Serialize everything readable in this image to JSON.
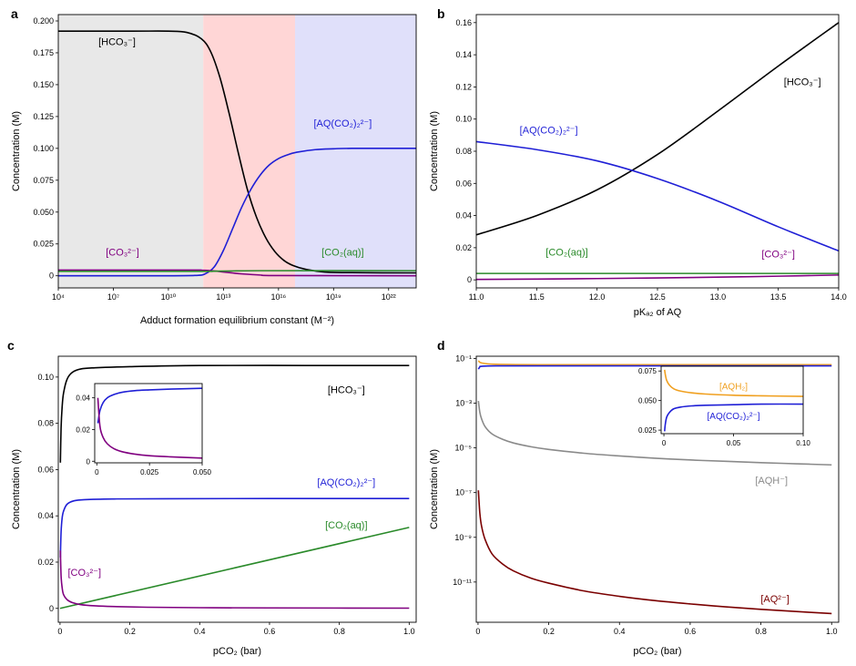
{
  "colors": {
    "black": "#000000",
    "blue": "#1f1fd6",
    "green": "#2a8a2a",
    "purple": "#800080",
    "gray": "#8a8a8a",
    "orange": "#f0a020",
    "darkred": "#7a0000",
    "shade_gray": "#e8e8e8",
    "shade_red": "#ffd6d6",
    "shade_blue": "#e0e0fa"
  },
  "panels": {
    "a": {
      "letter": "a"
    },
    "b": {
      "letter": "b"
    },
    "c": {
      "letter": "c"
    },
    "d": {
      "letter": "d"
    }
  },
  "chart_data": [
    {
      "id": "a",
      "type": "line",
      "xscale": "log",
      "xlabel": "Adduct formation equilibrium constant (M⁻²)",
      "ylabel": "Concentration (M)",
      "xlim_log10": [
        4,
        23.5
      ],
      "ylim": [
        -0.0095,
        0.205
      ],
      "xticks_log10": [
        4,
        7,
        10,
        13,
        16,
        19,
        22
      ],
      "xtick_labels": [
        "10⁴",
        "10⁷",
        "10¹⁰",
        "10¹³",
        "10¹⁶",
        "10¹⁹",
        "10²²"
      ],
      "yticks": [
        0,
        0.025,
        0.05,
        0.075,
        0.1,
        0.125,
        0.15,
        0.175,
        0.2
      ],
      "ytick_labels": [
        "0",
        "0.025",
        "0.050",
        "0.075",
        "0.100",
        "0.125",
        "0.150",
        "0.175",
        "0.200"
      ],
      "shaded_regions": [
        {
          "from_log10": 4,
          "to_log10": 11.9,
          "color": "shade_gray"
        },
        {
          "from_log10": 11.9,
          "to_log10": 16.9,
          "color": "shade_red"
        },
        {
          "from_log10": 16.9,
          "to_log10": 23.5,
          "color": "shade_blue"
        }
      ],
      "series": [
        {
          "name": "HCO3",
          "color": "black",
          "x_log10": [
            4,
            8,
            10,
            11,
            11.8,
            12.3,
            12.8,
            13.3,
            13.8,
            14.3,
            14.8,
            15.3,
            15.8,
            16.3,
            16.8,
            17.5,
            18.5,
            20,
            23.5
          ],
          "y": [
            0.192,
            0.192,
            0.192,
            0.191,
            0.186,
            0.176,
            0.156,
            0.128,
            0.097,
            0.068,
            0.046,
            0.03,
            0.019,
            0.012,
            0.008,
            0.005,
            0.003,
            0.0025,
            0.0023
          ]
        },
        {
          "name": "AQ(CO2)2",
          "color": "blue",
          "x_log10": [
            4,
            10,
            11.5,
            12,
            12.5,
            13,
            13.5,
            14,
            14.5,
            15,
            15.5,
            16,
            16.5,
            17,
            18,
            19,
            20,
            23.5
          ],
          "y": [
            0,
            0,
            0.0003,
            0.0015,
            0.007,
            0.02,
            0.037,
            0.054,
            0.068,
            0.079,
            0.087,
            0.092,
            0.095,
            0.097,
            0.099,
            0.0997,
            0.1,
            0.1
          ]
        },
        {
          "name": "CO3",
          "color": "purple",
          "x_log10": [
            4,
            11,
            11.8,
            12.5,
            13,
            13.5,
            14,
            15,
            16,
            23.5
          ],
          "y": [
            0.0045,
            0.0045,
            0.0044,
            0.0038,
            0.003,
            0.0022,
            0.0015,
            0.0006,
            0.0002,
            0.0
          ]
        },
        {
          "name": "CO2aq",
          "color": "green",
          "x_log10": [
            4,
            11.5,
            12.5,
            13.5,
            15,
            23.5
          ],
          "y": [
            0.0035,
            0.0035,
            0.0036,
            0.0038,
            0.004,
            0.004
          ]
        }
      ],
      "annotations": [
        {
          "text": "[HCO₃⁻]",
          "color": "black",
          "x_log10": 7.2,
          "y": 0.181
        },
        {
          "text": "[AQ(CO₂)₂²⁻]",
          "color": "blue",
          "x_log10": 19.5,
          "y": 0.117
        },
        {
          "text": "[CO₃²⁻]",
          "color": "purple",
          "x_log10": 7.5,
          "y": 0.016
        },
        {
          "text": "[CO₂(aq)]",
          "color": "green",
          "x_log10": 19.5,
          "y": 0.016
        }
      ]
    },
    {
      "id": "b",
      "type": "line",
      "xlabel": "pKₐ₂ of AQ",
      "ylabel": "Concentration (M)",
      "xlim": [
        11.0,
        14.0
      ],
      "ylim": [
        -0.005,
        0.165
      ],
      "xticks": [
        11.0,
        11.5,
        12.0,
        12.5,
        13.0,
        13.5,
        14.0
      ],
      "xtick_labels": [
        "11.0",
        "11.5",
        "12.0",
        "12.5",
        "13.0",
        "13.5",
        "14.0"
      ],
      "yticks": [
        0,
        0.02,
        0.04,
        0.06,
        0.08,
        0.1,
        0.12,
        0.14,
        0.16
      ],
      "ytick_labels": [
        "0",
        "0.02",
        "0.04",
        "0.06",
        "0.08",
        "0.10",
        "0.12",
        "0.14",
        "0.16"
      ],
      "series": [
        {
          "name": "HCO3",
          "color": "black",
          "x": [
            11.0,
            11.5,
            12.0,
            12.5,
            13.0,
            13.5,
            14.0
          ],
          "y": [
            0.028,
            0.04,
            0.056,
            0.078,
            0.105,
            0.133,
            0.16
          ]
        },
        {
          "name": "AQ(CO2)2",
          "color": "blue",
          "x": [
            11.0,
            11.5,
            12.0,
            12.5,
            13.0,
            13.5,
            14.0
          ],
          "y": [
            0.086,
            0.081,
            0.074,
            0.063,
            0.049,
            0.033,
            0.018
          ]
        },
        {
          "name": "CO2aq",
          "color": "green",
          "x": [
            11.0,
            14.0
          ],
          "y": [
            0.004,
            0.004
          ]
        },
        {
          "name": "CO3",
          "color": "purple",
          "x": [
            11.0,
            11.5,
            12.0,
            12.5,
            13.0,
            13.5,
            14.0
          ],
          "y": [
            0.0003,
            0.0005,
            0.0008,
            0.0012,
            0.0017,
            0.0023,
            0.003
          ]
        }
      ],
      "annotations": [
        {
          "text": "[HCO₃⁻]",
          "color": "black",
          "x": 13.7,
          "y": 0.121
        },
        {
          "text": "[AQ(CO₂)₂²⁻]",
          "color": "blue",
          "x": 11.6,
          "y": 0.091
        },
        {
          "text": "[CO₂(aq)]",
          "color": "green",
          "x": 11.75,
          "y": 0.015
        },
        {
          "text": "[CO₃²⁻]",
          "color": "purple",
          "x": 13.5,
          "y": 0.014
        }
      ]
    },
    {
      "id": "c",
      "type": "line",
      "xlabel": "pCO₂ (bar)",
      "ylabel": "Concentration (M)",
      "xlim": [
        -0.005,
        1.02
      ],
      "ylim": [
        -0.006,
        0.109
      ],
      "xticks": [
        0,
        0.2,
        0.4,
        0.6,
        0.8,
        1.0
      ],
      "xtick_labels": [
        "0",
        "0.2",
        "0.4",
        "0.6",
        "0.8",
        "1.0"
      ],
      "yticks": [
        0,
        0.02,
        0.04,
        0.06,
        0.08,
        0.1
      ],
      "ytick_labels": [
        "0",
        "0.02",
        "0.04",
        "0.06",
        "0.08",
        "0.10"
      ],
      "series": [
        {
          "name": "HCO3",
          "color": "black",
          "x": [
            0.001,
            0.003,
            0.006,
            0.01,
            0.02,
            0.035,
            0.06,
            0.1,
            0.2,
            0.4,
            0.7,
            1.0
          ],
          "y": [
            0.063,
            0.078,
            0.087,
            0.093,
            0.099,
            0.102,
            0.1035,
            0.104,
            0.1045,
            0.105,
            0.105,
            0.105
          ]
        },
        {
          "name": "AQ(CO2)2",
          "color": "blue",
          "x": [
            0.001,
            0.003,
            0.006,
            0.01,
            0.02,
            0.04,
            0.07,
            0.15,
            0.3,
            0.6,
            1.0
          ],
          "y": [
            0.022,
            0.033,
            0.039,
            0.042,
            0.045,
            0.0465,
            0.047,
            0.0473,
            0.0474,
            0.0475,
            0.0475
          ]
        },
        {
          "name": "CO2aq",
          "color": "green",
          "x": [
            0,
            1.0
          ],
          "y": [
            0,
            0.035
          ]
        },
        {
          "name": "CO3",
          "color": "purple",
          "x": [
            0.001,
            0.003,
            0.006,
            0.01,
            0.02,
            0.035,
            0.06,
            0.1,
            0.15,
            0.25,
            0.4,
            0.6,
            1.0
          ],
          "y": [
            0.025,
            0.014,
            0.009,
            0.006,
            0.0038,
            0.0025,
            0.0016,
            0.0011,
            0.0008,
            0.0005,
            0.0003,
            0.0002,
            0.0001
          ]
        }
      ],
      "annotations": [
        {
          "text": "[HCO₃⁻]",
          "color": "black",
          "x": 0.82,
          "y": 0.093
        },
        {
          "text": "[AQ(CO₂)₂²⁻]",
          "color": "blue",
          "x": 0.82,
          "y": 0.053
        },
        {
          "text": "[CO₂(aq)]",
          "color": "green",
          "x": 0.82,
          "y": 0.0345
        },
        {
          "text": "[CO₃²⁻]",
          "color": "purple",
          "x": 0.07,
          "y": 0.014
        }
      ],
      "inset": {
        "xlim": [
          -0.001,
          0.05
        ],
        "ylim": [
          -0.001,
          0.049
        ],
        "xticks": [
          0,
          0.025,
          0.05
        ],
        "xtick_labels": [
          "0",
          "0.025",
          "0.050"
        ],
        "yticks": [
          0,
          0.02,
          0.04
        ],
        "ytick_labels": [
          "0",
          "0.02",
          "0.04"
        ],
        "series": [
          {
            "name": "AQ(CO2)2",
            "color": "blue",
            "x": [
              0.0005,
              0.0015,
              0.003,
              0.005,
              0.008,
              0.012,
              0.018,
              0.025,
              0.035,
              0.05
            ],
            "y": [
              0.024,
              0.032,
              0.037,
              0.04,
              0.042,
              0.0435,
              0.0445,
              0.045,
              0.0455,
              0.046
            ]
          },
          {
            "name": "CO3",
            "color": "purple",
            "x": [
              0.0005,
              0.0015,
              0.003,
              0.005,
              0.008,
              0.012,
              0.018,
              0.025,
              0.035,
              0.05
            ],
            "y": [
              0.04,
              0.022,
              0.015,
              0.011,
              0.008,
              0.006,
              0.0045,
              0.0035,
              0.0028,
              0.002
            ]
          }
        ]
      }
    },
    {
      "id": "d",
      "type": "line",
      "yscale": "log",
      "xlabel": "pCO₂ (bar)",
      "ylabel": "Concentration (M)",
      "xlim": [
        -0.005,
        1.02
      ],
      "ylim_log10": [
        -12.8,
        -0.9
      ],
      "xticks": [
        0,
        0.2,
        0.4,
        0.6,
        0.8,
        1.0
      ],
      "xtick_labels": [
        "0",
        "0.2",
        "0.4",
        "0.6",
        "0.8",
        "1.0"
      ],
      "yticks_log10": [
        -1,
        -3,
        -5,
        -7,
        -9,
        -11
      ],
      "ytick_labels": [
        "10⁻¹",
        "10⁻³",
        "10⁻⁵",
        "10⁻⁷",
        "10⁻⁹",
        "10⁻¹¹"
      ],
      "series": [
        {
          "name": "AQH2",
          "color": "orange",
          "x": [
            0.001,
            0.01,
            0.05,
            0.2,
            0.6,
            1.0
          ],
          "y_log10": [
            -1.1,
            -1.2,
            -1.26,
            -1.28,
            -1.28,
            -1.28
          ]
        },
        {
          "name": "AQ(CO2)2",
          "color": "blue",
          "x": [
            0.001,
            0.005,
            0.01,
            0.05,
            0.2,
            1.0
          ],
          "y_log10": [
            -1.48,
            -1.38,
            -1.35,
            -1.33,
            -1.33,
            -1.33
          ]
        },
        {
          "name": "AQH",
          "color": "gray",
          "x": [
            0.001,
            0.005,
            0.01,
            0.02,
            0.04,
            0.07,
            0.1,
            0.15,
            0.2,
            0.3,
            0.4,
            0.5,
            0.6,
            0.7,
            0.8,
            0.9,
            1.0
          ],
          "y_log10": [
            -2.9,
            -3.4,
            -3.7,
            -4.05,
            -4.38,
            -4.62,
            -4.78,
            -4.95,
            -5.07,
            -5.24,
            -5.36,
            -5.46,
            -5.54,
            -5.6,
            -5.66,
            -5.71,
            -5.76
          ]
        },
        {
          "name": "AQ",
          "color": "darkred",
          "x": [
            0.001,
            0.005,
            0.01,
            0.02,
            0.04,
            0.07,
            0.1,
            0.15,
            0.2,
            0.3,
            0.4,
            0.5,
            0.6,
            0.7,
            0.8,
            0.9,
            1.0
          ],
          "y_log10": [
            -6.9,
            -7.9,
            -8.5,
            -9.1,
            -9.75,
            -10.2,
            -10.5,
            -10.83,
            -11.05,
            -11.4,
            -11.64,
            -11.83,
            -11.98,
            -12.11,
            -12.22,
            -12.32,
            -12.41
          ]
        }
      ],
      "annotations": [
        {
          "text": "[AQH⁻]",
          "color": "gray",
          "x": 0.83,
          "y_log10": -6.6
        },
        {
          "text": "[AQ²⁻]",
          "color": "darkred",
          "x": 0.84,
          "y_log10": -11.9
        }
      ],
      "inset": {
        "xlim": [
          -0.002,
          0.1
        ],
        "ylim": [
          0.022,
          0.079
        ],
        "xticks": [
          0,
          0.05,
          0.1
        ],
        "xtick_labels": [
          "0",
          "0.05",
          "0.10"
        ],
        "yticks": [
          0.025,
          0.05,
          0.075
        ],
        "ytick_labels": [
          "0.025",
          "0.050",
          "0.075"
        ],
        "series": [
          {
            "name": "AQH2",
            "color": "orange",
            "x": [
              0.0005,
              0.001,
              0.002,
              0.004,
              0.007,
              0.012,
              0.02,
              0.03,
              0.05,
              0.07,
              0.1
            ],
            "y": [
              0.076,
              0.072,
              0.067,
              0.063,
              0.06,
              0.058,
              0.0565,
              0.0555,
              0.0545,
              0.054,
              0.0535
            ]
          },
          {
            "name": "AQ(CO2)2",
            "color": "blue",
            "x": [
              0.0005,
              0.001,
              0.002,
              0.004,
              0.007,
              0.012,
              0.02,
              0.03,
              0.05,
              0.07,
              0.1
            ],
            "y": [
              0.024,
              0.03,
              0.036,
              0.04,
              0.043,
              0.0445,
              0.0455,
              0.046,
              0.0465,
              0.047,
              0.047
            ]
          }
        ],
        "annotations": [
          {
            "text": "[AQH₂]",
            "color": "orange",
            "x": 0.05,
            "y": 0.0595
          },
          {
            "text": "[AQ(CO₂)₂²⁻]",
            "color": "blue",
            "x": 0.05,
            "y": 0.0345
          }
        ]
      }
    }
  ]
}
